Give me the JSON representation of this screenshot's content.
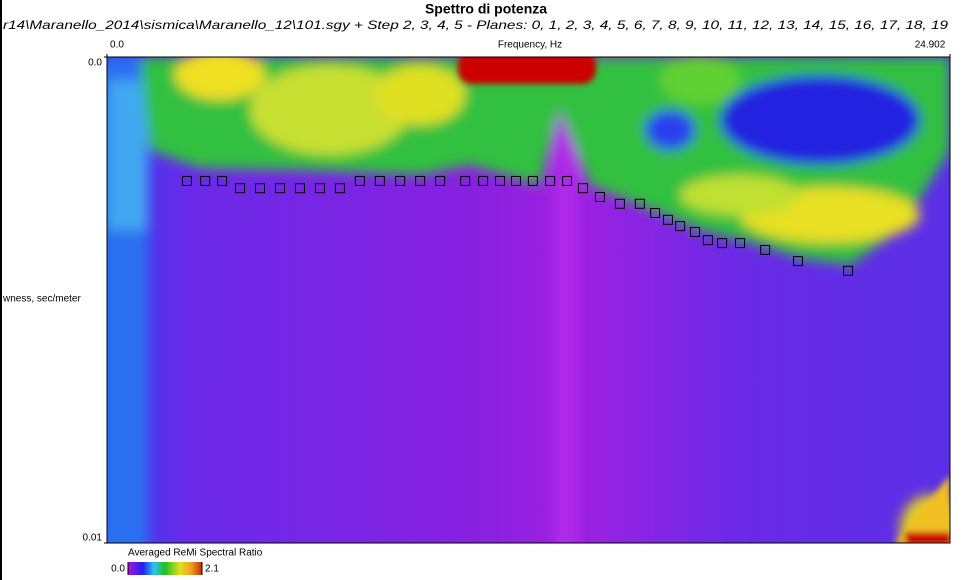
{
  "chart_data": {
    "type": "scatter",
    "title": "Spettro di potenza",
    "subtitle": "r14\\Maranello_2014\\sismica\\Maranello_12\\101.sgy + Step 2, 3, 4, 5 - Planes: 0, 1, 2, 3, 4, 5, 6, 7, 8, 9, 10, 11, 12, 13, 14, 15, 16, 17, 18, 19",
    "x_label": "Frequency, Hz",
    "y_label": "wness, sec/meter",
    "xlim": [
      0,
      24.902
    ],
    "xticks": [
      {
        "value": 0,
        "label": "0.0"
      },
      24.902
    ],
    "ylim": [
      0,
      0.01
    ],
    "yticks": [
      {
        "value": 0,
        "label": "0.0"
      },
      0.01
    ],
    "x": [
      2.36,
      2.9,
      3.4,
      3.93,
      4.52,
      5.11,
      5.7,
      6.29,
      6.88,
      7.47,
      8.06,
      8.66,
      9.25,
      9.84,
      10.58,
      11.11,
      11.61,
      12.08,
      12.58,
      13.09,
      13.59,
      14.06,
      14.56,
      15.15,
      15.74,
      16.19,
      16.57,
      16.93,
      17.37,
      17.75,
      18.17,
      18.7,
      19.44,
      20.41,
      21.89
    ],
    "values": [
      0.00255,
      0.00255,
      0.00255,
      0.0027,
      0.0027,
      0.0027,
      0.0027,
      0.0027,
      0.0027,
      0.00255,
      0.00255,
      0.00255,
      0.00255,
      0.00255,
      0.00255,
      0.00255,
      0.00255,
      0.00255,
      0.00255,
      0.00255,
      0.00255,
      0.0027,
      0.00288,
      0.00302,
      0.00302,
      0.00321,
      0.00335,
      0.00348,
      0.0036,
      0.00377,
      0.00383,
      0.00383,
      0.00397,
      0.0042,
      0.0044
    ],
    "colorbar": {
      "title": "Averaged ReMi Spectral Ratio",
      "lim": [
        0,
        2.1
      ],
      "ticks": [
        {
          "value": 0,
          "label": "0.0"
        },
        2.1
      ]
    }
  }
}
